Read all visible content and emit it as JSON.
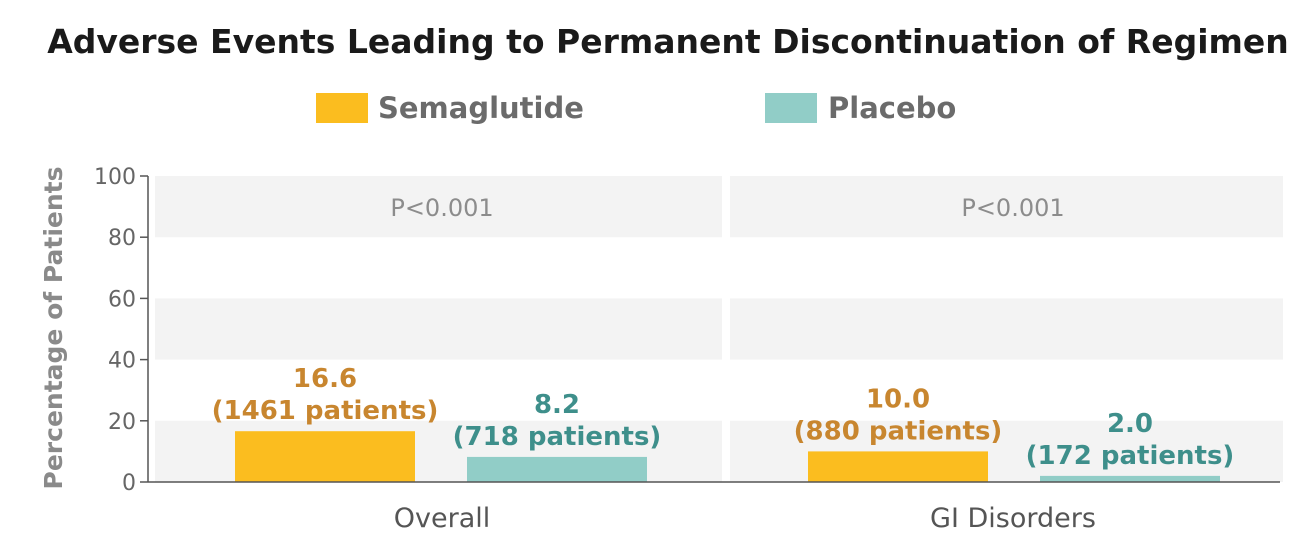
{
  "chart_data": {
    "type": "bar",
    "title": "Adverse Events Leading to Permanent Discontinuation of Regimen",
    "ylabel": "Percentage of Patients",
    "xlabel": "",
    "ylim": [
      0,
      100
    ],
    "yticks": [
      "0",
      "20",
      "40",
      "60",
      "80",
      "100"
    ],
    "categories": [
      "Overall",
      "GI Disorders"
    ],
    "series": [
      {
        "name": "Semaglutide",
        "color": "#fbbd1f",
        "label_color": "#c8862f",
        "values": [
          16.6,
          10.0
        ],
        "labels": [
          "16.6",
          "10.0"
        ],
        "sublabels": [
          "(1461 patients)",
          "(880 patients)"
        ]
      },
      {
        "name": "Placebo",
        "color": "#91cdc7",
        "label_color": "#3e8f8b",
        "values": [
          8.2,
          2.0
        ],
        "labels": [
          "8.2",
          "2.0"
        ],
        "sublabels": [
          "(718 patients)",
          "(172 patients)"
        ]
      }
    ],
    "annotations": [
      "P<0.001",
      "P<0.001"
    ],
    "grid": "alternating bands",
    "legend": "top"
  }
}
